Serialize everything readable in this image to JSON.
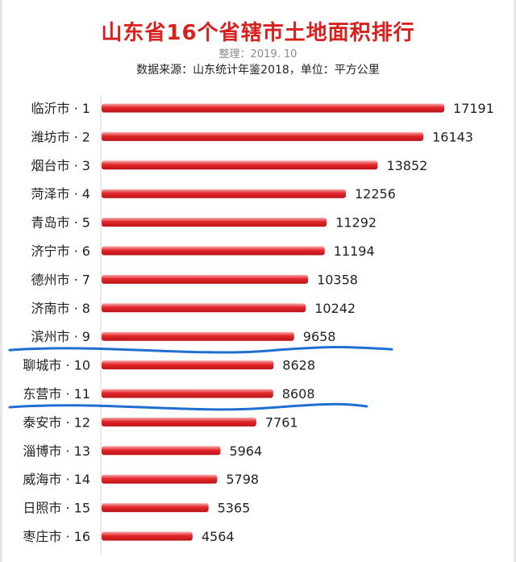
{
  "header": {
    "title": "山东省16个省辖市土地面积排行",
    "compiled": "整理：2019. 10",
    "source": "数据来源：山东统计年鉴2018，单位：平方公里"
  },
  "chart_data": {
    "type": "bar",
    "orientation": "horizontal",
    "categories": [
      "临沂市 · 1",
      "潍坊市 · 2",
      "烟台市 · 3",
      "菏泽市 · 4",
      "青岛市 · 5",
      "济宁市 · 6",
      "德州市 · 7",
      "济南市 · 8",
      "滨州市 · 9",
      "聊城市 · 10",
      "东营市 · 11",
      "泰安市 · 12",
      "淄博市 · 13",
      "威海市 · 14",
      "日照市 · 15",
      "枣庄市 · 16"
    ],
    "values": [
      17191,
      16143,
      13852,
      12256,
      11292,
      11194,
      10358,
      10242,
      9658,
      8628,
      8608,
      7761,
      5964,
      5798,
      5365,
      4564
    ],
    "unit": "平方公里",
    "bar_color": "#e3262b",
    "grid": false,
    "annotation": {
      "type": "hand-drawn underline",
      "color": "#1f6fd0",
      "underlined_categories": [
        "滨州市 · 9",
        "东营市 · 11"
      ]
    }
  }
}
